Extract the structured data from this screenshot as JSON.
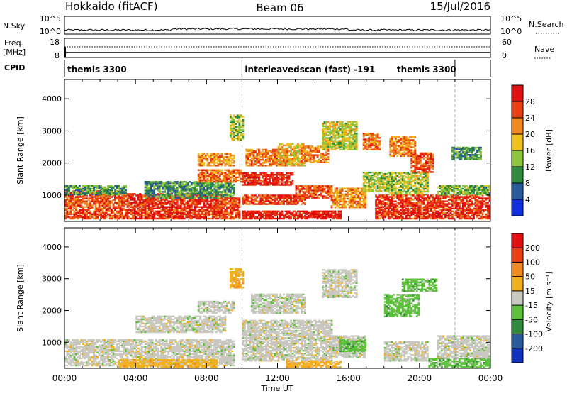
{
  "header": {
    "radar": "Hokkaido (fitACF)",
    "beam": "Beam 06",
    "date": "15/Jul/2016"
  },
  "housekeeping": {
    "nsky_label": "N.Sky",
    "nsky_ticks": [
      "10^5",
      "10^0"
    ],
    "nsearch_label": "N.Search",
    "nsearch_ticks": [
      "10^5",
      "10^0"
    ],
    "freq_label_1": "Freq.",
    "freq_label_2": "[MHz]",
    "freq_ticks": [
      "18",
      "8"
    ],
    "nave_label": "Nave",
    "nave_ticks": [
      "60",
      "0"
    ],
    "cpid_label": "CPID",
    "cpid_segments": [
      {
        "label": "themis 3300",
        "start_h": 0,
        "end_h": 10
      },
      {
        "label": "interleavedscan (fast) -191",
        "start_h": 10,
        "end_h": 22
      },
      {
        "label": "themis 3300",
        "start_h": 22,
        "end_h": 24
      }
    ]
  },
  "chart_data": [
    {
      "type": "heatmap",
      "title": "",
      "xlabel": "",
      "ylabel": "Slant Range [km]",
      "xlim": [
        0,
        24
      ],
      "ylim": [
        180,
        4600
      ],
      "x_ticks": [
        "00:00",
        "04:00",
        "08:00",
        "12:00",
        "16:00",
        "20:00",
        "00:00"
      ],
      "y_ticks": [
        1000,
        2000,
        3000,
        4000
      ],
      "colorbar": {
        "label": "Power [dB]",
        "ticks": [
          4,
          8,
          12,
          16,
          20,
          24,
          28
        ],
        "range": [
          0,
          30
        ],
        "colors": [
          "#1030e0",
          "#2a5a9a",
          "#2f8a3e",
          "#8cc63e",
          "#f0c020",
          "#f08a20",
          "#e84010",
          "#e01010"
        ]
      },
      "regions": [
        {
          "t0": 0.0,
          "t1": 3.5,
          "r0": 250,
          "r1": 1150,
          "v": 24
        },
        {
          "t0": 0.0,
          "t1": 3.5,
          "r0": 1000,
          "r1": 1300,
          "v": 10
        },
        {
          "t0": 3.5,
          "t1": 8.8,
          "r0": 250,
          "r1": 1050,
          "v": 26
        },
        {
          "t0": 4.5,
          "t1": 9.5,
          "r0": 900,
          "r1": 1400,
          "v": 10
        },
        {
          "t0": 7.5,
          "t1": 10.0,
          "r0": 1400,
          "r1": 1800,
          "v": 22
        },
        {
          "t0": 7.5,
          "t1": 9.5,
          "r0": 1900,
          "r1": 2300,
          "v": 20
        },
        {
          "t0": 8.8,
          "t1": 9.8,
          "r0": 250,
          "r1": 900,
          "v": 24
        },
        {
          "t0": 9.3,
          "t1": 10.0,
          "r0": 2700,
          "r1": 3500,
          "v": 14
        },
        {
          "t0": 10.0,
          "t1": 12.8,
          "r0": 1300,
          "r1": 1700,
          "v": 27
        },
        {
          "t0": 10.2,
          "t1": 12.5,
          "r0": 1900,
          "r1": 2400,
          "v": 22
        },
        {
          "t0": 10.0,
          "t1": 13.5,
          "r0": 700,
          "r1": 1000,
          "v": 25
        },
        {
          "t0": 10.0,
          "t1": 15.5,
          "r0": 250,
          "r1": 500,
          "v": 28
        },
        {
          "t0": 12.0,
          "t1": 13.5,
          "r0": 1900,
          "r1": 2600,
          "v": 18
        },
        {
          "t0": 13.0,
          "t1": 15.0,
          "r0": 900,
          "r1": 1300,
          "v": 24
        },
        {
          "t0": 13.3,
          "t1": 14.8,
          "r0": 2000,
          "r1": 2500,
          "v": 21
        },
        {
          "t0": 14.5,
          "t1": 16.5,
          "r0": 2400,
          "r1": 3300,
          "v": 15
        },
        {
          "t0": 15.0,
          "t1": 17.0,
          "r0": 600,
          "r1": 1200,
          "v": 20
        },
        {
          "t0": 16.8,
          "t1": 18.5,
          "r0": 1100,
          "r1": 1700,
          "v": 14
        },
        {
          "t0": 16.8,
          "t1": 17.8,
          "r0": 2400,
          "r1": 2900,
          "v": 22
        },
        {
          "t0": 18.2,
          "t1": 20.5,
          "r0": 1000,
          "r1": 1700,
          "v": 14
        },
        {
          "t0": 18.3,
          "t1": 19.8,
          "r0": 2200,
          "r1": 2800,
          "v": 21
        },
        {
          "t0": 19.5,
          "t1": 20.8,
          "r0": 1700,
          "r1": 2300,
          "v": 24
        },
        {
          "t0": 17.5,
          "t1": 24.0,
          "r0": 250,
          "r1": 1000,
          "v": 26
        },
        {
          "t0": 21.0,
          "t1": 24.0,
          "r0": 1000,
          "r1": 1300,
          "v": 12
        },
        {
          "t0": 21.8,
          "t1": 23.5,
          "r0": 2100,
          "r1": 2500,
          "v": 10
        }
      ]
    },
    {
      "type": "heatmap",
      "title": "",
      "xlabel": "Time UT",
      "ylabel": "Slant Range [km]",
      "xlim": [
        0,
        24
      ],
      "ylim": [
        180,
        4600
      ],
      "x_ticks": [
        "00:00",
        "04:00",
        "08:00",
        "12:00",
        "16:00",
        "20:00",
        "00:00"
      ],
      "y_ticks": [
        1000,
        2000,
        3000,
        4000
      ],
      "colorbar": {
        "label": "Velocity [m s⁻¹]",
        "ticks": [
          "200",
          "100",
          "50",
          "15",
          "-15",
          "-50",
          "-100",
          "-200"
        ],
        "colors": [
          "#1030c0",
          "#2a5a9a",
          "#2f8a3e",
          "#5cc03a",
          "#c8c8c0",
          "#f0b020",
          "#f08a20",
          "#e84010",
          "#e01010"
        ]
      },
      "regions": [
        {
          "t0": 0.0,
          "t1": 9.5,
          "r0": 250,
          "r1": 1100,
          "v": "-15..15"
        },
        {
          "t0": 4.0,
          "t1": 9.0,
          "r0": 1300,
          "r1": 1800,
          "v": "-15..15"
        },
        {
          "t0": 7.5,
          "t1": 9.5,
          "r0": 1900,
          "r1": 2300,
          "v": "-15..15"
        },
        {
          "t0": 3.0,
          "t1": 8.5,
          "r0": 200,
          "r1": 450,
          "v": "-50..-15"
        },
        {
          "t0": 9.3,
          "t1": 10.0,
          "r0": 2700,
          "r1": 3300,
          "v": "-50..-15"
        },
        {
          "t0": 10.0,
          "t1": 15.0,
          "r0": 400,
          "r1": 1700,
          "v": "-15..15"
        },
        {
          "t0": 10.5,
          "t1": 13.5,
          "r0": 1900,
          "r1": 2500,
          "v": "-15..15"
        },
        {
          "t0": 12.5,
          "t1": 15.5,
          "r0": 200,
          "r1": 400,
          "v": "-50..-15"
        },
        {
          "t0": 14.5,
          "t1": 16.5,
          "r0": 2400,
          "r1": 3300,
          "v": "-15..15"
        },
        {
          "t0": 15.0,
          "t1": 17.0,
          "r0": 500,
          "r1": 1200,
          "v": "-15..15"
        },
        {
          "t0": 15.5,
          "t1": 17.0,
          "r0": 700,
          "r1": 1100,
          "v": "15..50"
        },
        {
          "t0": 18.0,
          "t1": 20.0,
          "r0": 1800,
          "r1": 2500,
          "v": "15..50"
        },
        {
          "t0": 18.0,
          "t1": 20.5,
          "r0": 400,
          "r1": 1000,
          "v": "-15..15"
        },
        {
          "t0": 20.5,
          "t1": 24.0,
          "r0": 200,
          "r1": 500,
          "v": "15..50"
        },
        {
          "t0": 19.0,
          "t1": 21.0,
          "r0": 2600,
          "r1": 3000,
          "v": "15..50"
        },
        {
          "t0": 21.0,
          "t1": 24.0,
          "r0": 500,
          "r1": 1200,
          "v": "-15..15"
        }
      ]
    }
  ]
}
